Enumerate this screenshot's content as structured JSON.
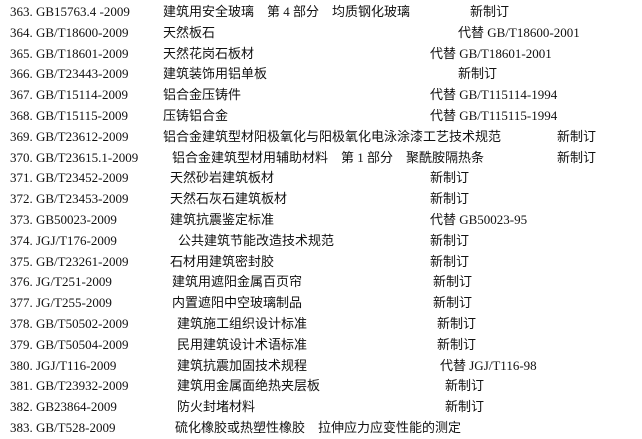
{
  "standards": [
    {
      "code": "363. GB15763.4 -2009",
      "title": "建筑用安全玻璃　第 4 部分　均质钢化玻璃",
      "status": "新制订"
    },
    {
      "code": "364. GB/T18600-2009",
      "title": "天然板石",
      "status": "代替 GB/T18600-2001"
    },
    {
      "code": "365. GB/T18601-2009",
      "title": "天然花岗石板材",
      "status": "代替 GB/T18601-2001"
    },
    {
      "code": "366. GB/T23443-2009",
      "title": "建筑装饰用铝单板",
      "status": "新制订"
    },
    {
      "code": "367. GB/T15114-2009",
      "title": "铝合金压铸件",
      "status": "代替 GB/T115114-1994"
    },
    {
      "code": "368. GB/T15115-2009",
      "title": "压铸铝合金",
      "status": "代替 GB/T115115-1994"
    },
    {
      "code": "369. GB/T23612-2009",
      "title": "铝合金建筑型材阳极氧化与阳极氧化电泳涂漆工艺技术规范",
      "status": "新制订"
    },
    {
      "code": "370. GB/T23615.1-2009",
      "title": "铝合金建筑型材用辅助材料　第 1 部分　聚酰胺隔热条",
      "status": "新制订"
    },
    {
      "code": "371. GB/T23452-2009",
      "title": "天然砂岩建筑板材",
      "status": "新制订"
    },
    {
      "code": "372. GB/T23453-2009",
      "title": "天然石灰石建筑板材",
      "status": "新制订"
    },
    {
      "code": "373. GB50023-2009",
      "title": "建筑抗震鉴定标准",
      "status": "代替 GB50023-95"
    },
    {
      "code": "374. JGJ/T176-2009",
      "title": "公共建筑节能改造技术规范",
      "status": "新制订"
    },
    {
      "code": "375. GB/T23261-2009",
      "title": "石材用建筑密封胶",
      "status": "新制订"
    },
    {
      "code": "376. JG/T251-2009",
      "title": "建筑用遮阳金属百页帘",
      "status": "新制订"
    },
    {
      "code": "377. JG/T255-2009",
      "title": "内置遮阳中空玻璃制品",
      "status": "新制订"
    },
    {
      "code": "378. GB/T50502-2009",
      "title": "建筑施工组织设计标准",
      "status": "新制订"
    },
    {
      "code": "379. GB/T50504-2009",
      "title": "民用建筑设计术语标准",
      "status": "新制订"
    },
    {
      "code": "380. JGJ/T116-2009",
      "title": "建筑抗震加固技术规程",
      "status": "代替 JGJ/T116-98"
    },
    {
      "code": "381. GB/T23932-2009",
      "title": "建筑用金属面绝热夹层板",
      "status": "新制订"
    },
    {
      "code": "382. GB23864-2009",
      "title": "防火封堵材料",
      "status": "新制订"
    },
    {
      "code": "383. GB/T528-2009",
      "title": "硫化橡胶或热塑性橡胶　拉伸应力应变性能的测定",
      "status": ""
    }
  ]
}
